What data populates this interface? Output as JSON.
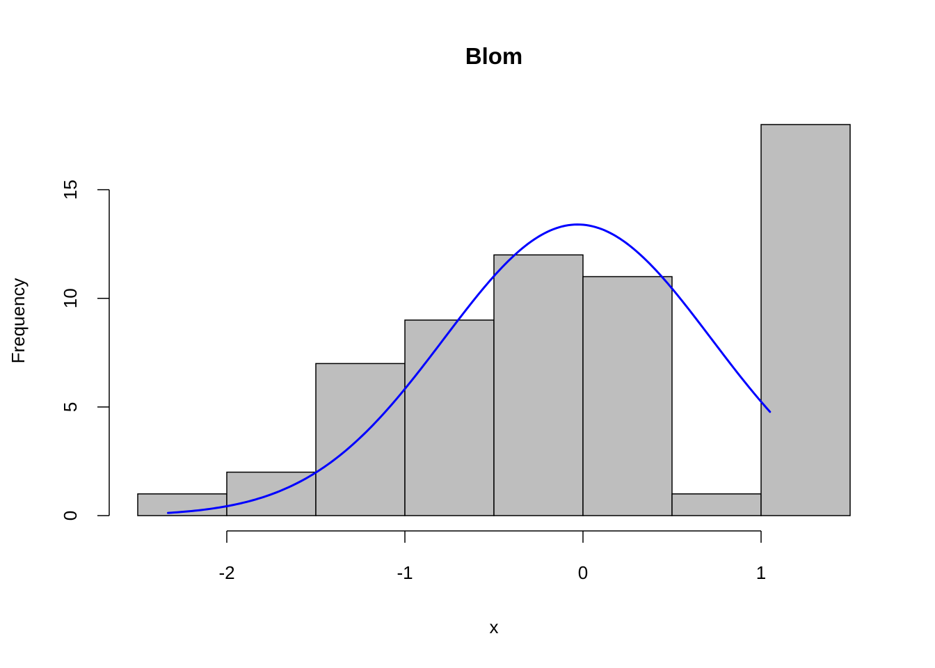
{
  "chart_data": {
    "type": "bar",
    "title": "Blom",
    "xlabel": "x",
    "ylabel": "Frequency",
    "bin_edges": [
      -2.5,
      -2.0,
      -1.5,
      -1.0,
      -0.5,
      0.0,
      0.5,
      1.0,
      1.5
    ],
    "values": [
      1,
      2,
      7,
      9,
      12,
      11,
      1,
      18
    ],
    "xlim": [
      -2.5,
      1.5
    ],
    "ylim": [
      0,
      18
    ],
    "xticks": [
      -2,
      -1,
      0,
      1
    ],
    "yticks": [
      0,
      5,
      10,
      15
    ],
    "grid": false,
    "bar_color": "#bebebe",
    "bar_border_color": "#000000",
    "curve": {
      "type": "normal-density",
      "color": "#0000ff",
      "mean": -0.03,
      "peak": 13.4,
      "sd": 0.752,
      "x_range": [
        -2.33,
        1.05
      ]
    }
  }
}
